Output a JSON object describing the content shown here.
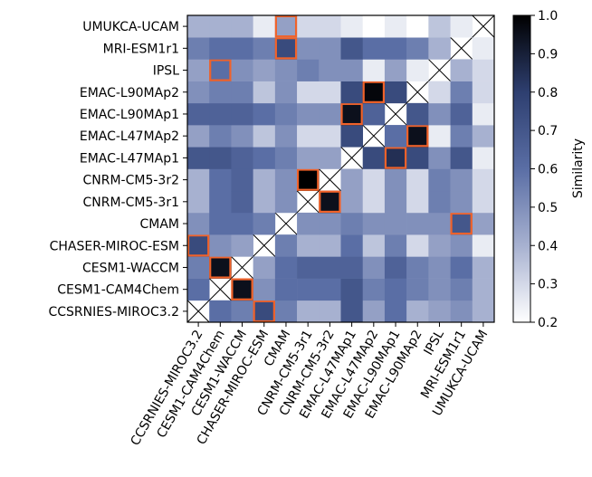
{
  "chart_data": {
    "type": "heatmap",
    "categories": [
      "CCSRNIES-MIROC3.2",
      "CESM1-CAM4Chem",
      "CESM1-WACCM",
      "CHASER-MIROC-ESM",
      "CMAM",
      "CNRM-CM5-3r1",
      "CNRM-CM5-3r2",
      "EMAC-L47MAp1",
      "EMAC-L47MAp2",
      "EMAC-L90MAp1",
      "EMAC-L90MAp2",
      "IPSL",
      "MRI-ESM1r1",
      "UMUKCA-UCAM"
    ],
    "values": [
      [
        null,
        0.6,
        0.55,
        0.75,
        0.55,
        0.4,
        0.4,
        0.7,
        0.45,
        0.6,
        0.4,
        0.45,
        0.5,
        0.4
      ],
      [
        0.6,
        null,
        0.95,
        0.5,
        0.6,
        0.6,
        0.6,
        0.7,
        0.55,
        0.6,
        0.55,
        0.5,
        0.55,
        0.4
      ],
      [
        0.55,
        0.95,
        null,
        0.45,
        0.6,
        0.65,
        0.65,
        0.65,
        0.5,
        0.65,
        0.55,
        0.5,
        0.6,
        0.4
      ],
      [
        0.75,
        0.5,
        0.45,
        null,
        0.55,
        0.4,
        0.4,
        0.6,
        0.35,
        0.55,
        0.3,
        0.45,
        0.5,
        0.25
      ],
      [
        0.5,
        0.6,
        0.6,
        0.55,
        null,
        0.5,
        0.5,
        0.55,
        0.5,
        0.5,
        0.5,
        0.5,
        0.7,
        0.45
      ],
      [
        0.4,
        0.6,
        0.65,
        0.4,
        0.5,
        null,
        0.95,
        0.45,
        0.3,
        0.5,
        0.3,
        0.55,
        0.5,
        0.3
      ],
      [
        0.4,
        0.6,
        0.65,
        0.4,
        0.5,
        1.0,
        null,
        0.45,
        0.3,
        0.5,
        0.3,
        0.55,
        0.5,
        0.3
      ],
      [
        0.7,
        0.7,
        0.65,
        0.6,
        0.55,
        0.45,
        0.45,
        null,
        0.75,
        0.85,
        0.75,
        0.5,
        0.7,
        0.25
      ],
      [
        0.45,
        0.55,
        0.5,
        0.35,
        0.5,
        0.3,
        0.3,
        0.75,
        null,
        0.6,
        0.95,
        0.25,
        0.55,
        0.4
      ],
      [
        0.65,
        0.65,
        0.65,
        0.6,
        0.55,
        0.5,
        0.5,
        0.95,
        0.65,
        null,
        0.7,
        0.5,
        0.65,
        0.25
      ],
      [
        0.5,
        0.55,
        0.55,
        0.35,
        0.5,
        0.3,
        0.3,
        0.75,
        0.98,
        0.75,
        null,
        0.3,
        0.55,
        0.3
      ],
      [
        0.45,
        0.6,
        0.5,
        0.45,
        0.5,
        0.55,
        0.5,
        0.5,
        0.25,
        0.45,
        0.25,
        null,
        0.4,
        0.3
      ],
      [
        0.55,
        0.6,
        0.6,
        0.55,
        0.75,
        0.5,
        0.5,
        0.7,
        0.6,
        0.6,
        0.55,
        0.4,
        null,
        0.25
      ],
      [
        0.4,
        0.4,
        0.4,
        0.25,
        0.45,
        0.3,
        0.3,
        0.25,
        0.2,
        0.25,
        0.2,
        0.35,
        0.25,
        null
      ]
    ],
    "colormap": [
      "#ffffff",
      "#a7b1d0",
      "#5a6ea5",
      "#2e3f70",
      "#000000"
    ],
    "highlight_color": "#f0622a",
    "clim": [
      0.2,
      1.0
    ],
    "cticks": [
      0.2,
      0.3,
      0.4,
      0.5,
      0.6,
      0.7,
      0.8,
      0.9,
      {
        "value": 1.0,
        "label": "1.0"
      }
    ],
    "colorbar_label": "Similarity"
  }
}
